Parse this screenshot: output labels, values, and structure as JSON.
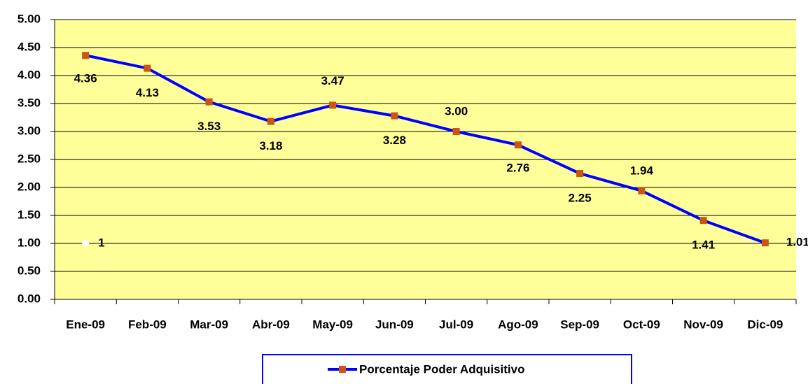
{
  "chart_data": {
    "type": "line",
    "categories": [
      "Ene-09",
      "Feb-09",
      "Mar-09",
      "Abr-09",
      "May-09",
      "Jun-09",
      "Jul-09",
      "Ago-09",
      "Sep-09",
      "Oct-09",
      "Nov-09",
      "Dic-09"
    ],
    "series": [
      {
        "name": "Porcentaje Poder Adquisitivo",
        "color": "#0000ff",
        "marker_color": "#cc5511",
        "values": [
          4.36,
          4.13,
          3.53,
          3.18,
          3.47,
          3.28,
          3.0,
          2.76,
          2.25,
          1.94,
          1.41,
          1.01
        ],
        "value_labels": [
          "4.36",
          "4.13",
          "3.53",
          "3.18",
          "3.47",
          "3.28",
          "3.00",
          "2.76",
          "2.25",
          "1.94",
          "1.41",
          "1.01"
        ]
      },
      {
        "color": "#ffffff",
        "values": [
          1,
          null,
          null,
          null,
          null,
          null,
          null,
          null,
          null,
          null,
          null,
          null
        ],
        "value_labels": [
          "1",
          null,
          null,
          null,
          null,
          null,
          null,
          null,
          null,
          null,
          null,
          null
        ]
      }
    ],
    "ylim": [
      0,
      5
    ],
    "yticks": [
      {
        "value": 0,
        "label": "0.00"
      },
      {
        "value": 0.5,
        "label": "0.50"
      },
      {
        "value": 1,
        "label": "1.00"
      },
      {
        "value": 1.5,
        "label": "1.50"
      },
      {
        "value": 2,
        "label": "2.00"
      },
      {
        "value": 2.5,
        "label": "2.50"
      },
      {
        "value": 3,
        "label": "3.00"
      },
      {
        "value": 3.5,
        "label": "3.50"
      },
      {
        "value": 4,
        "label": "4.00"
      },
      {
        "value": 4.5,
        "label": "4.50"
      },
      {
        "value": 5,
        "label": "5.00"
      }
    ],
    "grid": true,
    "background": "#ffff99",
    "legend": "bottom"
  }
}
